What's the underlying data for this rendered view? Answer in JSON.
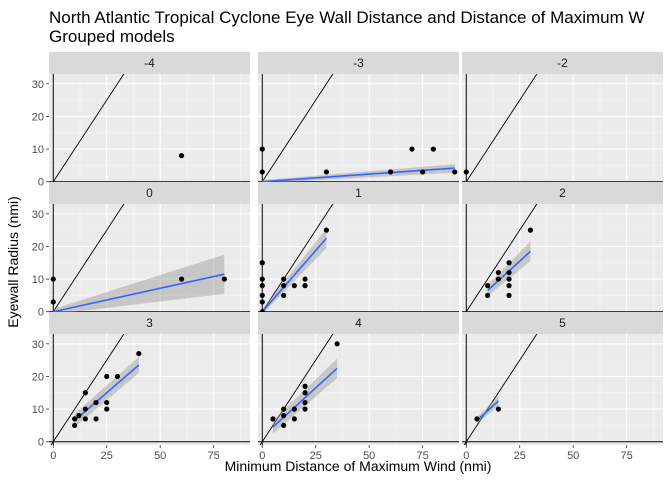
{
  "chart_data": {
    "type": "scatter",
    "title": "North Atlantic Tropical Cyclone Eye Wall Distance and Distance of Maximum W",
    "subtitle": "Grouped models",
    "xlabel": "Minimum Distance of Maximum Wind (nmi)",
    "ylabel": "Eyewall Radius (nmi)",
    "xlim": [
      -2,
      92
    ],
    "ylim": [
      -1,
      33
    ],
    "x_ticks": [
      0,
      25,
      50,
      75
    ],
    "y_ticks": [
      0,
      10,
      20,
      30
    ],
    "grid": true,
    "reference_line": {
      "slope": 1,
      "intercept": 0
    },
    "panels": [
      {
        "label": "-4",
        "points": [
          [
            60,
            8
          ]
        ],
        "fit": null
      },
      {
        "label": "-3",
        "points": [
          [
            0,
            3
          ],
          [
            0,
            10
          ],
          [
            30,
            3
          ],
          [
            60,
            3
          ],
          [
            70,
            10
          ],
          [
            75,
            3
          ],
          [
            80,
            10
          ],
          [
            90,
            3
          ]
        ],
        "fit": {
          "x0": 0,
          "x1": 90,
          "y0": 0,
          "y1": 4.2,
          "band_lo0": -0.5,
          "band_hi0": 0.5,
          "band_lo1": 2.8,
          "band_hi1": 5.4
        }
      },
      {
        "label": "-2",
        "points": [
          [
            0,
            3
          ]
        ],
        "fit": null
      },
      {
        "label": "0",
        "points": [
          [
            0,
            3
          ],
          [
            0,
            10
          ],
          [
            60,
            10
          ],
          [
            80,
            10
          ]
        ],
        "fit": {
          "x0": 0,
          "x1": 80,
          "y0": 0,
          "y1": 11.5,
          "band_lo0": -0.8,
          "band_hi0": 0.8,
          "band_lo1": 5.5,
          "band_hi1": 17.5
        }
      },
      {
        "label": "1",
        "points": [
          [
            0,
            0
          ],
          [
            0,
            3
          ],
          [
            0,
            5
          ],
          [
            0,
            8
          ],
          [
            0,
            10
          ],
          [
            0,
            15
          ],
          [
            10,
            5
          ],
          [
            10,
            8
          ],
          [
            10,
            10
          ],
          [
            15,
            8
          ],
          [
            20,
            8
          ],
          [
            20,
            10
          ],
          [
            30,
            25
          ]
        ],
        "fit": {
          "x0": 0,
          "x1": 30,
          "y0": 0,
          "y1": 22.5,
          "band_lo0": -0.8,
          "band_hi0": 0.8,
          "band_lo1": 19.5,
          "band_hi1": 25.5
        }
      },
      {
        "label": "2",
        "points": [
          [
            10,
            5
          ],
          [
            10,
            8
          ],
          [
            15,
            10
          ],
          [
            15,
            12
          ],
          [
            20,
            5
          ],
          [
            20,
            8
          ],
          [
            20,
            10
          ],
          [
            20,
            12
          ],
          [
            20,
            15
          ],
          [
            30,
            25
          ]
        ],
        "fit": {
          "x0": 10,
          "x1": 30,
          "y0": 6.5,
          "y1": 18.5,
          "band_lo0": 4.8,
          "band_hi0": 8.2,
          "band_lo1": 15.5,
          "band_hi1": 21.5
        }
      },
      {
        "label": "3",
        "points": [
          [
            10,
            5
          ],
          [
            10,
            7
          ],
          [
            12,
            8
          ],
          [
            15,
            7
          ],
          [
            15,
            10
          ],
          [
            15,
            15
          ],
          [
            20,
            7
          ],
          [
            20,
            12
          ],
          [
            25,
            10
          ],
          [
            25,
            12
          ],
          [
            25,
            20
          ],
          [
            30,
            20
          ],
          [
            40,
            27
          ]
        ],
        "fit": {
          "x0": 10,
          "x1": 40,
          "y0": 6.5,
          "y1": 23.5,
          "band_lo0": 4.5,
          "band_hi0": 8.5,
          "band_lo1": 21.0,
          "band_hi1": 26.0
        }
      },
      {
        "label": "4",
        "points": [
          [
            5,
            7
          ],
          [
            10,
            5
          ],
          [
            10,
            8
          ],
          [
            10,
            10
          ],
          [
            15,
            7
          ],
          [
            15,
            10
          ],
          [
            20,
            10
          ],
          [
            20,
            12
          ],
          [
            20,
            15
          ],
          [
            20,
            17
          ],
          [
            35,
            30
          ]
        ],
        "fit": {
          "x0": 5,
          "x1": 35,
          "y0": 4.5,
          "y1": 22.5,
          "band_lo0": 2.5,
          "band_hi0": 6.5,
          "band_lo1": 19.5,
          "band_hi1": 25.5
        }
      },
      {
        "label": "5",
        "points": [
          [
            5,
            7
          ],
          [
            15,
            10
          ]
        ],
        "fit": {
          "x0": 5,
          "x1": 15,
          "y0": 6.5,
          "y1": 12.5,
          "band_lo0": 5.5,
          "band_hi0": 7.5,
          "band_lo1": 11.0,
          "band_hi1": 14.0
        }
      }
    ],
    "colors": {
      "panel_bg": "#ebebeb",
      "strip_bg": "#d9d9d9",
      "grid_major": "#ffffff",
      "grid_minor": "#f5f5f5",
      "point": "#000000",
      "fit_line": "#3366ff",
      "fit_band": "#999999",
      "reference_line": "#000000",
      "tick_label": "#4d4d4d"
    }
  }
}
